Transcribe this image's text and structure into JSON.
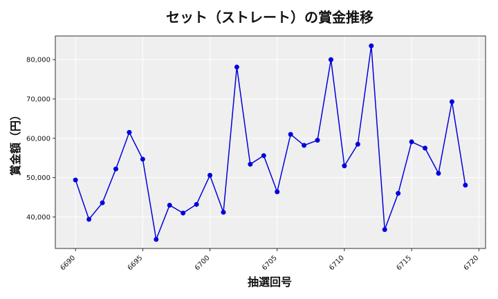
{
  "chart_data": {
    "type": "line",
    "title": "セット（ストレート）の賞金推移",
    "xlabel": "抽選回号",
    "ylabel": "賞金額（円）",
    "xlim": [
      6688.5,
      6720.5
    ],
    "ylim": [
      32000,
      86000
    ],
    "xticks": [
      6690,
      6695,
      6700,
      6705,
      6710,
      6715,
      6720
    ],
    "yticks": [
      40000,
      50000,
      60000,
      70000,
      80000
    ],
    "ytick_labels": [
      "40,000",
      "50,000",
      "60,000",
      "70,000",
      "80,000"
    ],
    "grid": true,
    "background": "#efefef",
    "line_color": "#0000dd",
    "x": [
      6690,
      6691,
      6692,
      6693,
      6694,
      6695,
      6696,
      6697,
      6698,
      6699,
      6700,
      6701,
      6702,
      6703,
      6704,
      6705,
      6706,
      6707,
      6708,
      6709,
      6710,
      6711,
      6712,
      6713,
      6714,
      6715,
      6716,
      6717,
      6718,
      6719
    ],
    "y": [
      49400,
      39400,
      43600,
      52200,
      61500,
      54700,
      34300,
      43000,
      41000,
      43200,
      50600,
      41200,
      78100,
      53400,
      55600,
      46400,
      61000,
      58200,
      59500,
      80000,
      53000,
      58500,
      83500,
      36800,
      46000,
      59100,
      57500,
      51100,
      69300,
      48100
    ]
  }
}
